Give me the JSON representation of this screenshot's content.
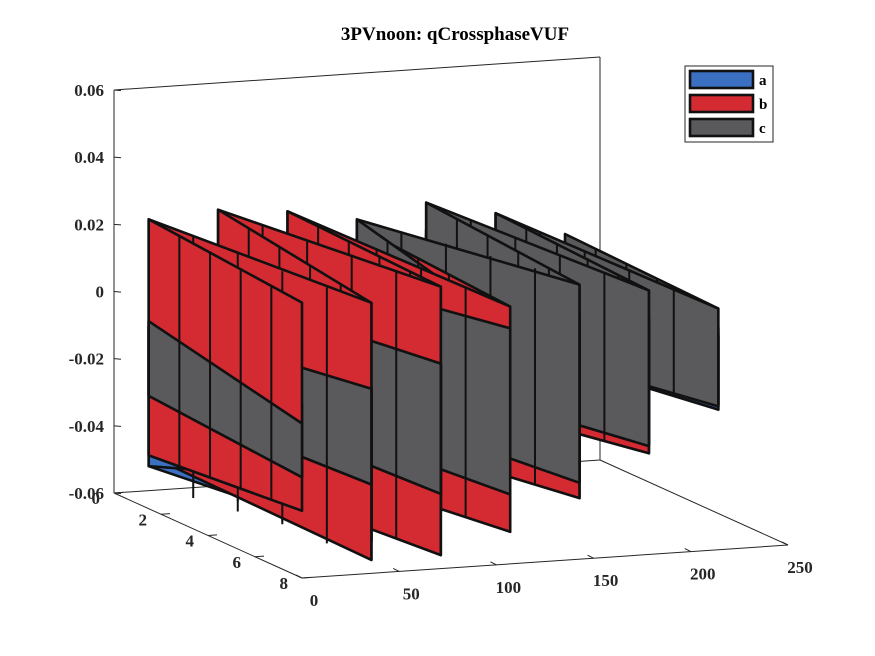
{
  "chart_data": {
    "type": "surface-3d",
    "title": "3PVnoon: qCrossphaseVUF",
    "xlabel": "",
    "ylabel": "",
    "zlabel": "",
    "x_range": [
      0,
      250
    ],
    "y_range": [
      0,
      8
    ],
    "z_range": [
      -0.06,
      0.06
    ],
    "x_ticks": [
      "0",
      "50",
      "100",
      "150",
      "200",
      "250"
    ],
    "y_ticks": [
      "0",
      "2",
      "4",
      "6",
      "8"
    ],
    "z_ticks": [
      "0.06",
      "0.04",
      "0.02",
      "0",
      "-0.02",
      "-0.04",
      "-0.06"
    ],
    "grid": false,
    "legend_position": "top-right",
    "series": [
      {
        "name": "a",
        "color": "#3a6fc2",
        "y_span": [
          0,
          8
        ],
        "profile": [
          {
            "x": 0,
            "lo": -0.03,
            "hi": -0.008
          },
          {
            "x": 22,
            "lo": -0.058,
            "hi": -0.012
          },
          {
            "x": 55,
            "lo": -0.04,
            "hi": 0.006
          },
          {
            "x": 98,
            "lo": -0.048,
            "hi": -0.008
          },
          {
            "x": 138,
            "lo": -0.036,
            "hi": 0.014
          },
          {
            "x": 182,
            "lo": -0.026,
            "hi": 0.01
          },
          {
            "x": 232,
            "lo": -0.014,
            "hi": 0.004
          }
        ]
      },
      {
        "name": "b",
        "color": "#d42a32",
        "y_span": [
          0,
          8
        ],
        "profile": [
          {
            "x": 0,
            "lo": -0.04,
            "hi": 0.022
          },
          {
            "x": 30,
            "lo": -0.056,
            "hi": 0.02
          },
          {
            "x": 72,
            "lo": -0.056,
            "hi": 0.024
          },
          {
            "x": 110,
            "lo": -0.05,
            "hi": 0.016
          },
          {
            "x": 150,
            "lo": -0.04,
            "hi": 0.012
          },
          {
            "x": 195,
            "lo": -0.024,
            "hi": 0.006
          },
          {
            "x": 232,
            "lo": -0.01,
            "hi": 0.002
          }
        ]
      },
      {
        "name": "c",
        "color": "#5a5a5d",
        "y_span": [
          0,
          8
        ],
        "profile": [
          {
            "x": 0,
            "lo": -0.03,
            "hi": -0.014
          },
          {
            "x": 40,
            "lo": -0.034,
            "hi": -0.004
          },
          {
            "x": 90,
            "lo": -0.04,
            "hi": 0.004
          },
          {
            "x": 140,
            "lo": -0.038,
            "hi": 0.022
          },
          {
            "x": 185,
            "lo": -0.026,
            "hi": 0.018
          },
          {
            "x": 232,
            "lo": -0.012,
            "hi": 0.008
          }
        ]
      }
    ]
  }
}
